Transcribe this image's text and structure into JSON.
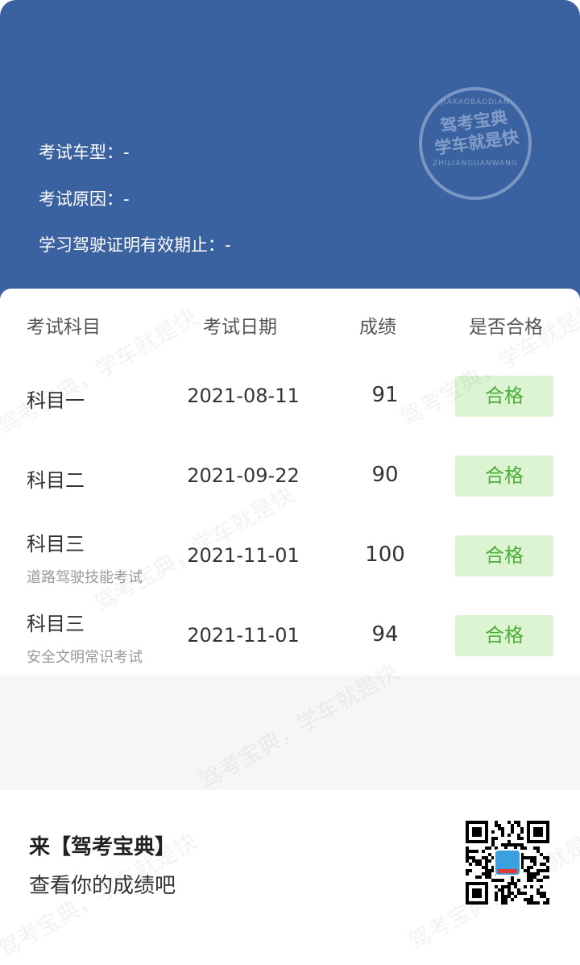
{
  "header": {
    "car_type_label": "考试车型：-",
    "reason_label": "考试原因：-",
    "validity_label": "学习驾驶证明有效期止：-",
    "stamp": {
      "top": "JIAKAOBAODIAN",
      "line1": "驾考宝典",
      "line2": "学车就是快",
      "bottom": "ZHILIANGUANWANG"
    }
  },
  "table": {
    "columns": [
      "考试科目",
      "考试日期",
      "成绩",
      "是否合格"
    ],
    "rows": [
      {
        "subject": "科目一",
        "subtitle": "",
        "date": "2021-08-11",
        "score": "91",
        "result": "合格"
      },
      {
        "subject": "科目二",
        "subtitle": "",
        "date": "2021-09-22",
        "score": "90",
        "result": "合格"
      },
      {
        "subject": "科目三",
        "subtitle": "道路驾驶技能考试",
        "date": "2021-11-01",
        "score": "100",
        "result": "合格"
      },
      {
        "subject": "科目三",
        "subtitle": "安全文明常识考试",
        "date": "2021-11-01",
        "score": "94",
        "result": "合格"
      }
    ]
  },
  "footer": {
    "title": "来【驾考宝典】",
    "subtitle": "查看你的成绩吧"
  },
  "watermark": "驾考宝典，学车就是快",
  "colors": {
    "header": "#3a62a0",
    "pass_bg": "#dcf4d2",
    "pass_text": "#4caf3a"
  }
}
